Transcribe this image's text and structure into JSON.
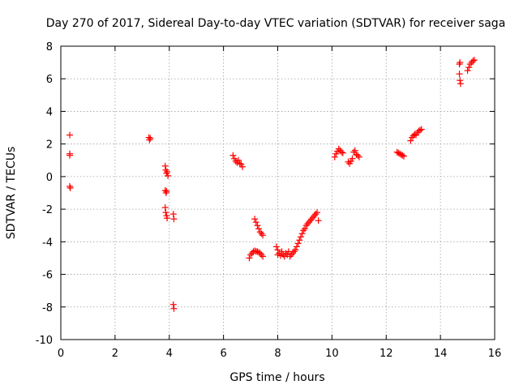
{
  "chart_data": {
    "type": "scatter",
    "title": "Day 270 of 2017, Sidereal Day-to-day VTEC variation (SDTVAR) for receiver saga",
    "xlabel": "GPS time / hours",
    "ylabel": "SDTVAR / TECUs",
    "xlim": [
      0,
      16
    ],
    "ylim": [
      -10,
      8
    ],
    "xticks": [
      "0",
      "2",
      "4",
      "6",
      "8",
      "10",
      "12",
      "14",
      "16"
    ],
    "yticks": [
      "-10",
      "-8",
      "-6",
      "-4",
      "-2",
      "0",
      "2",
      "4",
      "6",
      "8"
    ],
    "grid": true,
    "marker": "+",
    "color": "#ff0000",
    "series": [
      {
        "name": "SDTVAR",
        "points": [
          [
            0.33,
            2.55
          ],
          [
            0.33,
            1.4
          ],
          [
            0.33,
            1.3
          ],
          [
            0.33,
            -0.6
          ],
          [
            0.35,
            -0.7
          ],
          [
            3.25,
            2.4
          ],
          [
            3.27,
            2.25
          ],
          [
            3.3,
            2.35
          ],
          [
            3.85,
            0.65
          ],
          [
            3.87,
            0.4
          ],
          [
            3.9,
            0.2
          ],
          [
            3.92,
            0.3
          ],
          [
            3.95,
            0.05
          ],
          [
            3.85,
            -0.85
          ],
          [
            3.88,
            -1.0
          ],
          [
            3.9,
            -0.9
          ],
          [
            3.85,
            -1.9
          ],
          [
            3.87,
            -2.2
          ],
          [
            3.9,
            -2.4
          ],
          [
            3.92,
            -2.55
          ],
          [
            4.15,
            -2.3
          ],
          [
            4.17,
            -2.6
          ],
          [
            4.15,
            -7.85
          ],
          [
            4.17,
            -8.1
          ],
          [
            6.35,
            1.3
          ],
          [
            6.4,
            1.1
          ],
          [
            6.45,
            0.95
          ],
          [
            6.5,
            0.85
          ],
          [
            6.55,
            1.0
          ],
          [
            6.6,
            0.8
          ],
          [
            6.65,
            0.75
          ],
          [
            6.7,
            0.6
          ],
          [
            6.95,
            -5.0
          ],
          [
            7.0,
            -4.8
          ],
          [
            7.05,
            -4.7
          ],
          [
            7.1,
            -4.6
          ],
          [
            7.15,
            -4.55
          ],
          [
            7.2,
            -4.6
          ],
          [
            7.25,
            -4.6
          ],
          [
            7.3,
            -4.65
          ],
          [
            7.35,
            -4.7
          ],
          [
            7.4,
            -4.8
          ],
          [
            7.45,
            -4.9
          ],
          [
            7.15,
            -2.6
          ],
          [
            7.2,
            -2.8
          ],
          [
            7.25,
            -3.0
          ],
          [
            7.3,
            -3.2
          ],
          [
            7.35,
            -3.4
          ],
          [
            7.4,
            -3.5
          ],
          [
            7.45,
            -3.6
          ],
          [
            7.95,
            -4.3
          ],
          [
            8.0,
            -4.5
          ],
          [
            8.0,
            -4.8
          ],
          [
            8.05,
            -4.7
          ],
          [
            8.1,
            -4.85
          ],
          [
            8.15,
            -4.6
          ],
          [
            8.2,
            -4.8
          ],
          [
            8.25,
            -4.9
          ],
          [
            8.3,
            -4.7
          ],
          [
            8.35,
            -4.8
          ],
          [
            8.4,
            -4.6
          ],
          [
            8.45,
            -4.9
          ],
          [
            8.5,
            -4.8
          ],
          [
            8.55,
            -4.7
          ],
          [
            8.6,
            -4.6
          ],
          [
            8.65,
            -4.5
          ],
          [
            8.7,
            -4.3
          ],
          [
            8.75,
            -4.1
          ],
          [
            8.8,
            -3.9
          ],
          [
            8.85,
            -3.7
          ],
          [
            8.9,
            -3.5
          ],
          [
            8.95,
            -3.3
          ],
          [
            9.0,
            -3.2
          ],
          [
            9.05,
            -3.0
          ],
          [
            9.1,
            -2.9
          ],
          [
            9.15,
            -2.8
          ],
          [
            9.2,
            -2.7
          ],
          [
            9.25,
            -2.6
          ],
          [
            9.3,
            -2.5
          ],
          [
            9.35,
            -2.4
          ],
          [
            9.4,
            -2.3
          ],
          [
            9.45,
            -2.2
          ],
          [
            9.5,
            -2.7
          ],
          [
            10.1,
            1.2
          ],
          [
            10.15,
            1.4
          ],
          [
            10.2,
            1.55
          ],
          [
            10.25,
            1.7
          ],
          [
            10.3,
            1.6
          ],
          [
            10.35,
            1.5
          ],
          [
            10.4,
            1.45
          ],
          [
            10.6,
            0.9
          ],
          [
            10.65,
            0.8
          ],
          [
            10.7,
            0.95
          ],
          [
            10.75,
            1.1
          ],
          [
            10.8,
            1.5
          ],
          [
            10.85,
            1.6
          ],
          [
            10.9,
            1.35
          ],
          [
            10.95,
            1.3
          ],
          [
            11.0,
            1.2
          ],
          [
            12.4,
            1.5
          ],
          [
            12.45,
            1.45
          ],
          [
            12.5,
            1.4
          ],
          [
            12.55,
            1.35
          ],
          [
            12.6,
            1.3
          ],
          [
            12.65,
            1.25
          ],
          [
            12.9,
            2.2
          ],
          [
            12.95,
            2.4
          ],
          [
            13.0,
            2.5
          ],
          [
            13.05,
            2.6
          ],
          [
            13.1,
            2.55
          ],
          [
            13.15,
            2.7
          ],
          [
            13.2,
            2.8
          ],
          [
            13.25,
            2.85
          ],
          [
            13.3,
            2.9
          ],
          [
            14.7,
            6.9
          ],
          [
            14.72,
            7.0
          ],
          [
            14.7,
            6.3
          ],
          [
            14.72,
            5.9
          ],
          [
            14.74,
            5.7
          ],
          [
            15.0,
            6.5
          ],
          [
            15.05,
            6.7
          ],
          [
            15.1,
            6.9
          ],
          [
            15.15,
            7.0
          ],
          [
            15.2,
            7.1
          ],
          [
            15.25,
            7.15
          ]
        ]
      }
    ]
  }
}
